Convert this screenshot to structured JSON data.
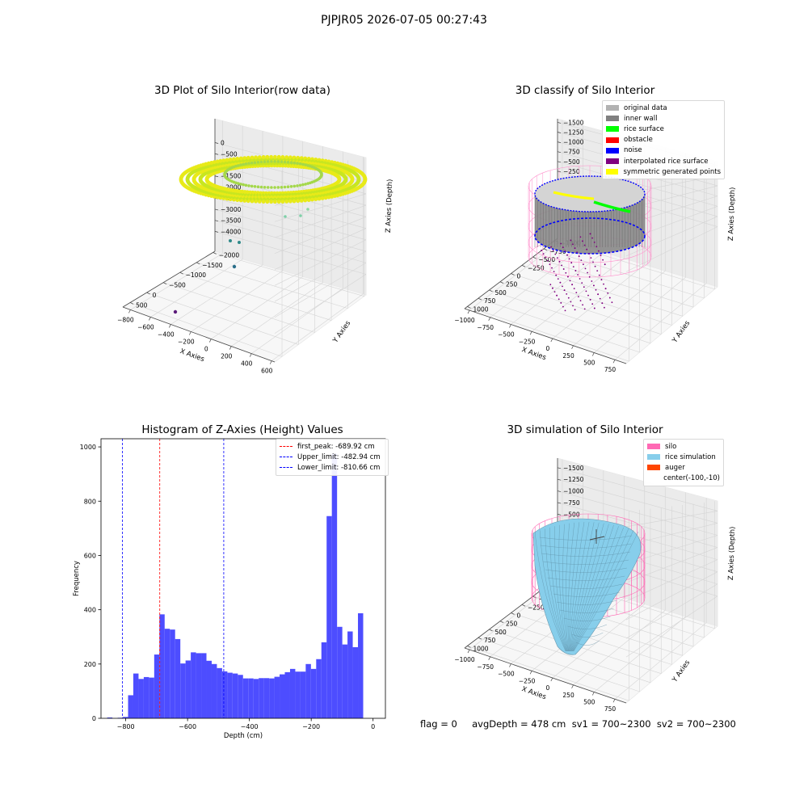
{
  "suptitle": "PJPJR05 2026-07-05 00:27:43",
  "status_text": "flag = 0     avgDepth = 478 cm  sv1 = 700~2300  sv2 = 700~2300",
  "colors": {
    "original_data": "#b2b2b2",
    "inner_wall": "#808080",
    "rice_surface": "#00ff00",
    "obstacle": "#ff0000",
    "noise": "#0000ff",
    "interpolated": "#800080",
    "symmetric": "#ffff00",
    "silo": "#ff69b4",
    "rice_sim": "#87ceeb",
    "auger": "#ff4500",
    "hist_bar": "#4d4dff"
  },
  "plot1": {
    "title": "3D Plot of Silo Interior(row data)",
    "xlabel": "X Axies",
    "ylabel": "Y Axies",
    "zlabel": "Z Axies (Depth)",
    "xticks": [
      "−800",
      "−600",
      "−400",
      "−200",
      "0",
      "200",
      "400",
      "600"
    ],
    "yticks": [
      "−2000",
      "−1500",
      "−1000",
      "−500",
      "0",
      "500"
    ],
    "zticks": [
      "0",
      "−500",
      "−1000",
      "−1500",
      "−2000",
      "−2500",
      "−3000",
      "−3500",
      "−4000"
    ]
  },
  "plot2": {
    "title": "3D classify of Silo Interior",
    "xlabel": "X Axies",
    "ylabel": "Y Axies",
    "zlabel": "Z Axies (Depth)",
    "xticks": [
      "−1000",
      "−750",
      "−500",
      "−250",
      "0",
      "250",
      "500",
      "750"
    ],
    "yticks": [
      "−1000",
      "−750",
      "−500",
      "−250",
      "0",
      "250",
      "500",
      "750",
      "1000"
    ],
    "zticks": [
      "0",
      "−250",
      "−500",
      "−750",
      "−1000",
      "−1250",
      "−1500"
    ],
    "legend": [
      "original data",
      "inner wall",
      "rice surface",
      "obstacle",
      "noise",
      "interpolated rice surface",
      "symmetric generated points"
    ]
  },
  "plot4": {
    "title": "3D simulation of Silo Interior",
    "xlabel": "X Axies",
    "ylabel": "Y Axies",
    "zlabel": "Z Axies (Depth)",
    "xticks": [
      "−1000",
      "−750",
      "−500",
      "−250",
      "0",
      "250",
      "500",
      "750"
    ],
    "yticks": [
      "−1000",
      "−750",
      "−500",
      "−250",
      "0",
      "250",
      "500",
      "750",
      "1000"
    ],
    "zticks": [
      "250",
      "0",
      "−250",
      "−500",
      "−750",
      "−1000",
      "−1250",
      "−1500"
    ],
    "legend": [
      "silo",
      "rice simulation",
      "auger",
      "center(-100,-10)"
    ]
  },
  "chart_data": {
    "type": "bar",
    "title": "Histogram of Z-Axies (Height) Values",
    "xlabel": "Depth (cm)",
    "ylabel": "Frequency",
    "xlim": [
      -880,
      40
    ],
    "ylim": [
      0,
      1030
    ],
    "xticks": [
      -800,
      -600,
      -400,
      -200,
      0
    ],
    "yticks": [
      0,
      200,
      400,
      600,
      800,
      1000
    ],
    "bin_start": -860,
    "bin_width": 16.9,
    "values": [
      3,
      0,
      2,
      5,
      85,
      165,
      145,
      152,
      150,
      235,
      383,
      330,
      327,
      292,
      202,
      213,
      243,
      240,
      240,
      212,
      200,
      185,
      173,
      168,
      165,
      160,
      147,
      147,
      145,
      148,
      148,
      147,
      153,
      162,
      170,
      182,
      172,
      172,
      200,
      182,
      218,
      280,
      745,
      975,
      337,
      272,
      320,
      262,
      387
    ],
    "vlines": [
      {
        "label": "first_peak: -689.92 cm",
        "value": -689.92,
        "color": "#ff0000"
      },
      {
        "label": "Upper_limit: -482.94 cm",
        "value": -482.94,
        "color": "#0000ff"
      },
      {
        "label": "Lower_limit: -810.66 cm",
        "value": -810.66,
        "color": "#0000ff"
      }
    ]
  }
}
